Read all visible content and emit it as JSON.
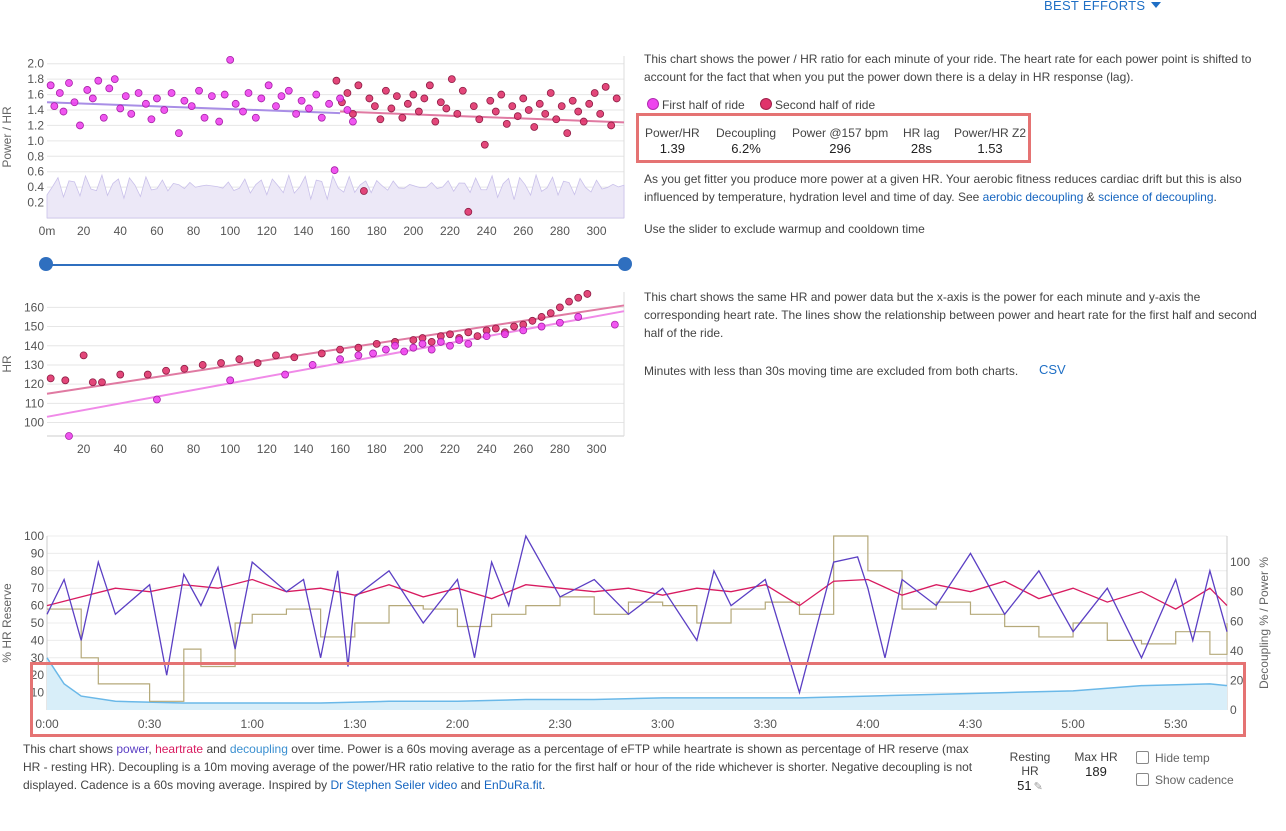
{
  "header": {
    "best_efforts_label": "BEST EFFORTS"
  },
  "colors": {
    "first_half": "#ee44ee",
    "second_half": "#e0336b",
    "power": "#5b3fc4",
    "heartrate": "#d81b60",
    "decoupling": "#6ab8e8",
    "cadence": "#b5a97a",
    "link": "#1565c0",
    "highlight": "#e57373"
  },
  "info": {
    "p1": "This chart shows the power / HR ratio for each minute of your ride. The heart rate for each power point is shifted to account for the fact that when you put the power down there is a delay in HR response (lag).",
    "legend_first": "First half of ride",
    "legend_second": "Second half of ride",
    "p2_before": "As you get fitter you produce more power at a given HR. Your aerobic fitness reduces cardiac drift but this is also influenced by temperature, hydration level and time of day. See ",
    "link_aerobic": "aerobic decoupling",
    "p2_amp": " & ",
    "link_science": "science of decoupling",
    "p2_end": ".",
    "slider_hint": "Use the slider to exclude warmup and cooldown time",
    "p3": "This chart shows the same HR and power data but the x-axis is the power for each minute and y-axis the corresponding heart rate. The lines show the relationship between power and heart rate for the first half and second half of the ride.",
    "p4": "Minutes with less than 30s moving time are excluded from both charts.",
    "csv": "CSV"
  },
  "stats": [
    {
      "label": "Power/HR",
      "value": "1.39"
    },
    {
      "label": "Decoupling",
      "value": "6.2%"
    },
    {
      "label": "Power @157 bpm",
      "value": "296"
    },
    {
      "label": "HR lag",
      "value": "28s"
    },
    {
      "label": "Power/HR Z2",
      "value": "1.53"
    }
  ],
  "chart_data": [
    {
      "type": "scatter",
      "title": "",
      "ylabel": "Power / HR",
      "xlim": [
        0,
        315
      ],
      "ylim": [
        0,
        2.1
      ],
      "x_ticks": [
        "0m",
        "20",
        "40",
        "60",
        "80",
        "100",
        "120",
        "140",
        "160",
        "180",
        "200",
        "220",
        "240",
        "260",
        "280",
        "300"
      ],
      "y_ticks": [
        "0.2",
        "0.4",
        "0.6",
        "0.8",
        "1.0",
        "1.2",
        "1.4",
        "1.6",
        "1.8",
        "2.0"
      ],
      "series": [
        {
          "name": "First half of ride",
          "x": [
            2,
            4,
            7,
            9,
            12,
            15,
            18,
            22,
            25,
            28,
            31,
            34,
            37,
            40,
            43,
            46,
            50,
            54,
            57,
            60,
            64,
            68,
            72,
            75,
            79,
            83,
            86,
            90,
            94,
            97,
            100,
            103,
            107,
            110,
            114,
            117,
            121,
            125,
            128,
            132,
            136,
            139,
            143,
            147,
            150,
            154,
            157,
            160,
            164,
            167
          ],
          "y": [
            1.72,
            1.45,
            1.62,
            1.38,
            1.75,
            1.5,
            1.2,
            1.66,
            1.55,
            1.78,
            1.3,
            1.68,
            1.8,
            1.42,
            1.58,
            1.35,
            1.62,
            1.48,
            1.28,
            1.55,
            1.4,
            1.62,
            1.1,
            1.52,
            1.45,
            1.65,
            1.3,
            1.58,
            1.25,
            1.6,
            2.05,
            1.48,
            1.38,
            1.62,
            1.3,
            1.55,
            1.72,
            1.45,
            1.58,
            1.65,
            1.35,
            1.52,
            1.42,
            1.6,
            1.3,
            1.48,
            0.62,
            1.55,
            1.4,
            1.25
          ]
        },
        {
          "name": "Second half of ride",
          "x": [
            158,
            161,
            164,
            167,
            170,
            173,
            176,
            179,
            182,
            185,
            188,
            191,
            194,
            197,
            200,
            203,
            206,
            209,
            212,
            215,
            218,
            221,
            224,
            227,
            230,
            233,
            236,
            239,
            242,
            245,
            248,
            251,
            254,
            257,
            260,
            263,
            266,
            269,
            272,
            275,
            278,
            281,
            284,
            287,
            290,
            293,
            296,
            299,
            302,
            305,
            308,
            311
          ],
          "y": [
            1.78,
            1.5,
            1.62,
            1.35,
            1.72,
            0.35,
            1.55,
            1.45,
            1.28,
            1.65,
            1.42,
            1.58,
            1.3,
            1.48,
            1.6,
            1.38,
            1.55,
            1.72,
            1.25,
            1.5,
            1.42,
            1.8,
            1.35,
            1.65,
            0.08,
            1.45,
            1.28,
            0.95,
            1.52,
            1.38,
            1.6,
            1.22,
            1.45,
            1.32,
            1.55,
            1.4,
            1.18,
            1.48,
            1.35,
            1.62,
            1.28,
            1.45,
            1.1,
            1.52,
            1.38,
            1.25,
            1.48,
            1.62,
            1.35,
            1.7,
            1.2,
            1.55
          ]
        }
      ],
      "trend_first": [
        [
          0,
          1.5
        ],
        [
          160,
          1.36
        ]
      ],
      "trend_second": [
        [
          160,
          1.38
        ],
        [
          315,
          1.24
        ]
      ]
    },
    {
      "type": "scatter",
      "title": "",
      "ylabel": "HR",
      "xlim": [
        0,
        315
      ],
      "ylim": [
        93,
        168
      ],
      "x_ticks": [
        "20",
        "40",
        "60",
        "80",
        "100",
        "120",
        "140",
        "160",
        "180",
        "200",
        "220",
        "240",
        "260",
        "280",
        "300"
      ],
      "y_ticks": [
        "100",
        "110",
        "120",
        "130",
        "140",
        "150",
        "160"
      ],
      "series": [
        {
          "name": "First half of ride",
          "x": [
            12,
            60,
            100,
            130,
            145,
            160,
            170,
            178,
            185,
            190,
            195,
            200,
            205,
            210,
            215,
            220,
            225,
            230,
            240,
            250,
            260,
            270,
            280,
            290,
            310
          ],
          "y": [
            93,
            112,
            122,
            125,
            130,
            133,
            135,
            136,
            138,
            140,
            137,
            139,
            141,
            138,
            142,
            140,
            143,
            141,
            145,
            146,
            148,
            150,
            152,
            155,
            151
          ]
        },
        {
          "name": "Second half of ride",
          "x": [
            2,
            10,
            20,
            25,
            30,
            40,
            55,
            65,
            75,
            85,
            95,
            105,
            115,
            125,
            135,
            150,
            160,
            170,
            180,
            190,
            200,
            205,
            210,
            215,
            220,
            225,
            230,
            235,
            240,
            245,
            250,
            255,
            260,
            265,
            270,
            275,
            280,
            285,
            290,
            295
          ],
          "y": [
            123,
            122,
            135,
            121,
            121,
            125,
            125,
            127,
            128,
            130,
            131,
            133,
            131,
            135,
            134,
            136,
            138,
            139,
            141,
            142,
            143,
            144,
            142,
            145,
            146,
            144,
            147,
            145,
            148,
            149,
            147,
            150,
            151,
            153,
            155,
            157,
            160,
            163,
            165,
            167
          ]
        }
      ],
      "trend_first": [
        [
          0,
          103
        ],
        [
          315,
          158
        ]
      ],
      "trend_second": [
        [
          0,
          115
        ],
        [
          315,
          161
        ]
      ]
    },
    {
      "type": "line",
      "title": "",
      "ylabel": "% HR Reserve",
      "y2label": "Decoupling % / Power %",
      "xlim": [
        0,
        345
      ],
      "ylim": [
        0,
        100
      ],
      "x_ticks": [
        "0:00",
        "0:30",
        "1:00",
        "1:30",
        "2:00",
        "2:30",
        "3:00",
        "3:30",
        "4:00",
        "4:30",
        "5:00",
        "5:30"
      ],
      "y_ticks": [
        "10",
        "20",
        "30",
        "40",
        "50",
        "60",
        "70",
        "80",
        "90",
        "100"
      ],
      "y2_ticks": [
        "0",
        "20",
        "40",
        "60",
        "80",
        "100"
      ],
      "series": [
        {
          "name": "power",
          "x": [
            0,
            5,
            10,
            15,
            20,
            30,
            35,
            40,
            45,
            50,
            55,
            60,
            70,
            75,
            80,
            85,
            88,
            90,
            100,
            110,
            120,
            125,
            130,
            135,
            140,
            150,
            160,
            170,
            180,
            190,
            195,
            200,
            210,
            220,
            230,
            237,
            240,
            245,
            250,
            260,
            270,
            280,
            290,
            300,
            310,
            320,
            330,
            335,
            340,
            345
          ],
          "y": [
            55,
            75,
            40,
            85,
            55,
            72,
            20,
            78,
            60,
            82,
            35,
            85,
            68,
            75,
            30,
            80,
            25,
            65,
            80,
            50,
            75,
            30,
            85,
            60,
            100,
            65,
            75,
            55,
            70,
            40,
            80,
            60,
            75,
            10,
            85,
            88,
            70,
            30,
            75,
            60,
            90,
            55,
            80,
            45,
            70,
            30,
            75,
            40,
            80,
            45
          ]
        },
        {
          "name": "heartrate",
          "x": [
            0,
            10,
            20,
            30,
            40,
            50,
            60,
            70,
            80,
            90,
            100,
            110,
            120,
            130,
            140,
            150,
            160,
            170,
            180,
            190,
            200,
            210,
            220,
            230,
            240,
            250,
            260,
            270,
            280,
            290,
            300,
            310,
            320,
            330,
            340,
            345
          ],
          "y": [
            60,
            65,
            70,
            68,
            72,
            70,
            75,
            68,
            70,
            66,
            72,
            65,
            70,
            64,
            72,
            70,
            68,
            70,
            66,
            70,
            68,
            72,
            60,
            74,
            75,
            66,
            72,
            68,
            74,
            64,
            70,
            62,
            68,
            58,
            70,
            60
          ]
        },
        {
          "name": "decoupling",
          "x": [
            0,
            5,
            10,
            20,
            40,
            60,
            80,
            100,
            120,
            140,
            160,
            180,
            200,
            220,
            240,
            260,
            280,
            300,
            320,
            340,
            345
          ],
          "y": [
            30,
            15,
            8,
            5,
            4,
            4,
            4,
            5,
            5,
            6,
            6,
            7,
            7,
            7,
            8,
            9,
            10,
            11,
            14,
            15,
            14
          ]
        },
        {
          "name": "cadence",
          "x": [
            0,
            10,
            15,
            20,
            30,
            40,
            45,
            55,
            60,
            70,
            80,
            90,
            100,
            110,
            120,
            130,
            140,
            150,
            160,
            170,
            180,
            190,
            200,
            210,
            220,
            230,
            240,
            250,
            260,
            270,
            280,
            290,
            300,
            310,
            320,
            330,
            340,
            345
          ],
          "y": [
            58,
            30,
            15,
            15,
            5,
            35,
            25,
            50,
            55,
            58,
            42,
            50,
            60,
            58,
            48,
            55,
            60,
            65,
            55,
            62,
            60,
            50,
            58,
            62,
            55,
            100,
            80,
            58,
            62,
            55,
            48,
            42,
            50,
            40,
            38,
            45,
            32,
            50
          ]
        }
      ]
    }
  ],
  "footer": {
    "text_1": "This chart shows ",
    "w_power": "power",
    "c_1": ", ",
    "w_heartrate": "heartrate",
    "and_1": " and ",
    "w_decoupling": "decoupling",
    "text_2": " over time. Power is a 60s moving average as a percentage of eFTP while heartrate is shown as percentage of HR reserve (max HR - resting HR). Decoupling is a 10m moving average of the power/HR ratio relative to the ratio for the first half or hour of the ride whichever is shorter. Negative decoupling is not displayed. Cadence is a 60s moving average. Inspired by ",
    "link_seiler": "Dr Stephen Seiler video",
    "and_2": " and ",
    "link_endura": "EnDuRa.fit",
    "end": "."
  },
  "controls": {
    "resting_hr_label": "Resting HR",
    "resting_hr_value": "51",
    "max_hr_label": "Max HR",
    "max_hr_value": "189",
    "hide_temp_label": "Hide temp",
    "show_cadence_label": "Show cadence"
  }
}
